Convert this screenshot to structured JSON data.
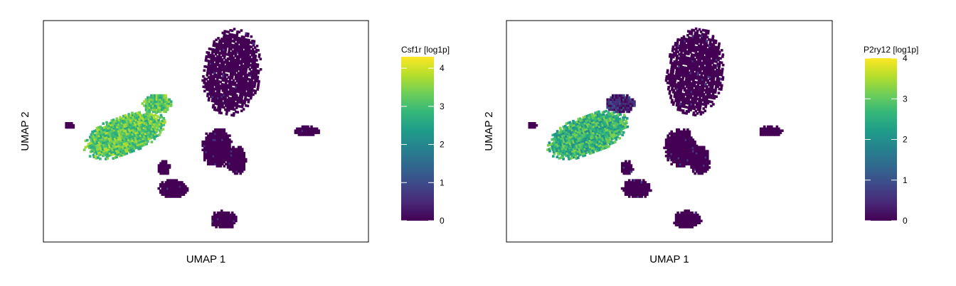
{
  "chart_data": [
    {
      "type": "scatter",
      "xlabel": "UMAP 1",
      "ylabel": "UMAP 2",
      "colorbar": {
        "title": "Csf1r [log1p]",
        "ticks": [
          "0",
          "1",
          "2",
          "3",
          "4"
        ],
        "range": [
          0,
          4.3
        ],
        "colormap": [
          "#440154",
          "#482878",
          "#3e4989",
          "#31688e",
          "#26828e",
          "#1f9e89",
          "#35b779",
          "#6ece58",
          "#b5de2b",
          "#fde725"
        ]
      },
      "clusters": [
        {
          "cx": 1.6,
          "cy": 3.2,
          "rx": 1.8,
          "ry": 2.4,
          "rot": -10,
          "expr": 0.0,
          "holes": true
        },
        {
          "cx": 0.7,
          "cy": -0.9,
          "rx": 1.0,
          "ry": 1.1,
          "rot": 0,
          "expr": 0.0,
          "holes": false
        },
        {
          "cx": 1.9,
          "cy": -1.6,
          "rx": 0.65,
          "ry": 0.8,
          "rot": 0,
          "expr": 0.0,
          "holes": false
        },
        {
          "cx": -5.0,
          "cy": -0.2,
          "rx": 2.6,
          "ry": 1.1,
          "rot": 18,
          "expr": 3.2,
          "holes": false
        },
        {
          "cx": -3.0,
          "cy": 1.5,
          "rx": 0.9,
          "ry": 0.55,
          "rot": 0,
          "expr": 3.1,
          "holes": false
        },
        {
          "cx": -2.0,
          "cy": -3.1,
          "rx": 0.9,
          "ry": 0.55,
          "rot": 0,
          "expr": 0.0,
          "holes": false
        },
        {
          "cx": -2.6,
          "cy": -2.0,
          "rx": 0.4,
          "ry": 0.4,
          "rot": 0,
          "expr": 0.0,
          "holes": false
        },
        {
          "cx": 1.1,
          "cy": -4.8,
          "rx": 0.9,
          "ry": 0.5,
          "rot": 0,
          "expr": 0.0,
          "holes": false
        },
        {
          "cx": 6.2,
          "cy": 0.0,
          "rx": 0.8,
          "ry": 0.3,
          "rot": 0,
          "expr": 0.0,
          "holes": false
        },
        {
          "cx": -8.4,
          "cy": 0.3,
          "rx": 0.3,
          "ry": 0.2,
          "rot": 0,
          "expr": 0.0,
          "holes": false
        }
      ]
    },
    {
      "type": "scatter",
      "xlabel": "UMAP 1",
      "ylabel": "UMAP 2",
      "colorbar": {
        "title": "P2ry12 [log1p]",
        "ticks": [
          "0",
          "1",
          "2",
          "3",
          "4"
        ],
        "range": [
          0,
          4.0
        ],
        "colormap": [
          "#440154",
          "#482878",
          "#3e4989",
          "#31688e",
          "#26828e",
          "#1f9e89",
          "#35b779",
          "#6ece58",
          "#b5de2b",
          "#fde725"
        ]
      },
      "clusters": [
        {
          "cx": 1.6,
          "cy": 3.2,
          "rx": 1.8,
          "ry": 2.4,
          "rot": -10,
          "expr": 0.0,
          "holes": true
        },
        {
          "cx": 0.7,
          "cy": -0.9,
          "rx": 1.0,
          "ry": 1.1,
          "rot": 0,
          "expr": 0.0,
          "holes": false
        },
        {
          "cx": 1.9,
          "cy": -1.6,
          "rx": 0.65,
          "ry": 0.8,
          "rot": 0,
          "expr": 0.0,
          "holes": false
        },
        {
          "cx": -5.0,
          "cy": -0.2,
          "rx": 2.6,
          "ry": 1.1,
          "rot": 18,
          "expr": 2.6,
          "holes": false
        },
        {
          "cx": -3.0,
          "cy": 1.5,
          "rx": 0.9,
          "ry": 0.55,
          "rot": 0,
          "expr": 0.4,
          "holes": false
        },
        {
          "cx": -2.0,
          "cy": -3.1,
          "rx": 0.9,
          "ry": 0.55,
          "rot": 0,
          "expr": 0.0,
          "holes": false
        },
        {
          "cx": -2.6,
          "cy": -2.0,
          "rx": 0.4,
          "ry": 0.4,
          "rot": 0,
          "expr": 0.0,
          "holes": false
        },
        {
          "cx": 1.1,
          "cy": -4.8,
          "rx": 0.9,
          "ry": 0.5,
          "rot": 0,
          "expr": 0.0,
          "holes": false
        },
        {
          "cx": 6.2,
          "cy": 0.0,
          "rx": 0.8,
          "ry": 0.3,
          "rot": 0,
          "expr": 0.0,
          "holes": false
        },
        {
          "cx": -8.4,
          "cy": 0.3,
          "rx": 0.3,
          "ry": 0.2,
          "rot": 0,
          "expr": 0.0,
          "holes": false
        }
      ]
    }
  ]
}
